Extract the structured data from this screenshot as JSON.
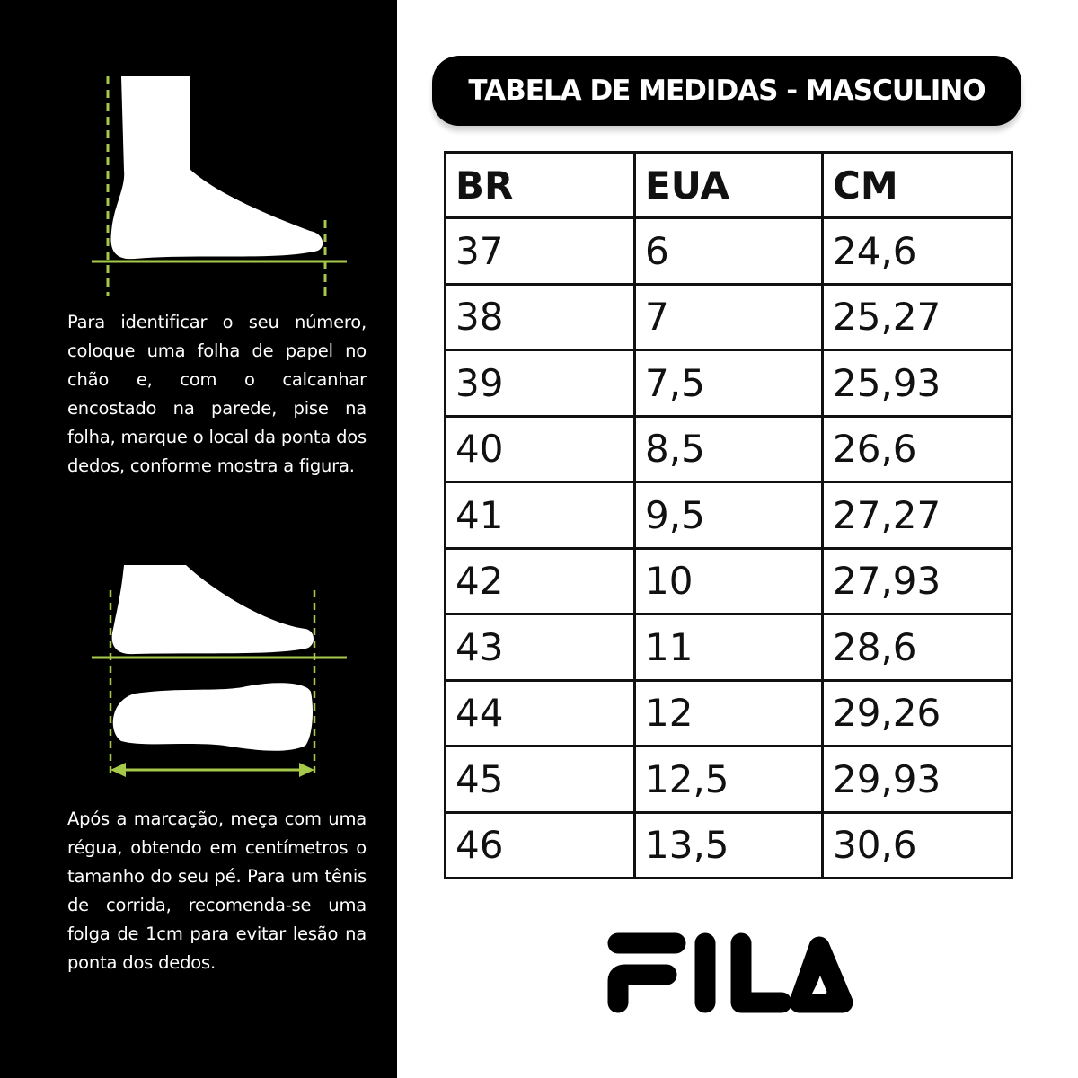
{
  "instructions": {
    "step1": "Para identificar o seu número, coloque uma folha de papel no chão e, com o calcanhar encostado na parede, pise na folha, marque o local da ponta dos dedos, conforme mostra a figura.",
    "step2": "Após a marcação, meça com uma régua, obtendo em centímetros o tamanho do seu pé. Para um tênis de corrida, recomenda-se uma folga de 1cm para evitar lesão na ponta dos dedos."
  },
  "title": "TABELA DE MEDIDAS - MASCULINO",
  "table": {
    "headers": [
      "BR",
      "EUA",
      "CM"
    ],
    "rows": [
      [
        "37",
        "6",
        "24,6"
      ],
      [
        "38",
        "7",
        "25,27"
      ],
      [
        "39",
        "7,5",
        "25,93"
      ],
      [
        "40",
        "8,5",
        "26,6"
      ],
      [
        "41",
        "9,5",
        "27,27"
      ],
      [
        "42",
        "10",
        "27,93"
      ],
      [
        "43",
        "11",
        "28,6"
      ],
      [
        "44",
        "12",
        "29,26"
      ],
      [
        "45",
        "12,5",
        "29,93"
      ],
      [
        "46",
        "13,5",
        "30,6"
      ]
    ]
  },
  "logo": {
    "text": "FILA"
  },
  "colors": {
    "guide_green": "#a6c94a",
    "panel": "#000000"
  }
}
